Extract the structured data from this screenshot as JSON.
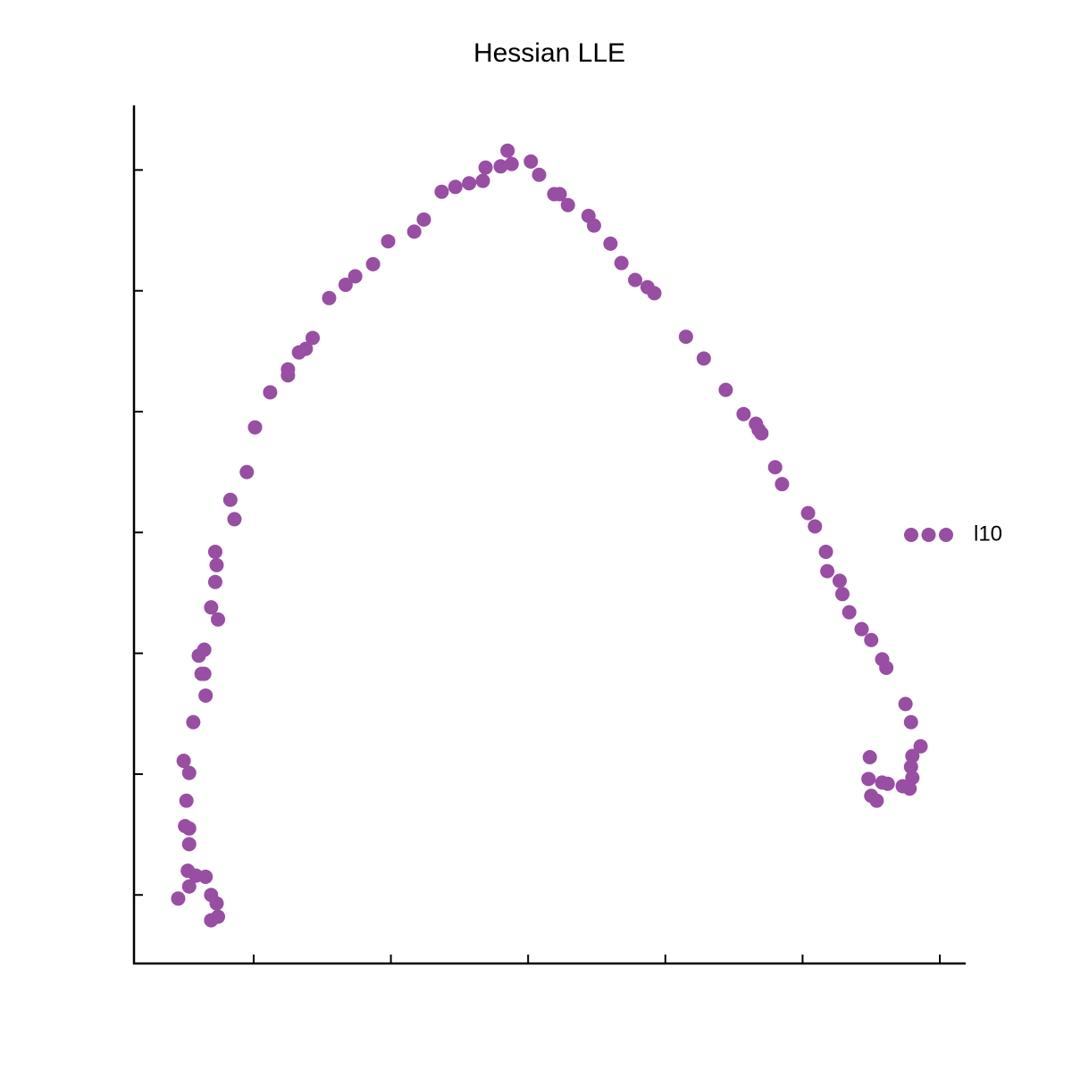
{
  "chart_data": {
    "type": "scatter",
    "title": "Hessian LLE",
    "xlim": [
      0.128,
      6.182
    ],
    "ylim": [
      -0.56,
      6.52
    ],
    "xticks": [
      1,
      2,
      3,
      4,
      5,
      6
    ],
    "yticks": [
      0,
      1,
      2,
      3,
      4,
      5,
      6
    ],
    "tick_labels": false,
    "legend": "right",
    "series": [
      {
        "name": "l10",
        "color": "#984ea3",
        "x": [
          0.45,
          0.69,
          0.74,
          0.73,
          0.69,
          0.53,
          0.52,
          0.58,
          0.65,
          0.53,
          0.53,
          0.5,
          0.51,
          0.53,
          0.49,
          0.56,
          0.65,
          0.64,
          0.62,
          0.6,
          0.64,
          0.74,
          0.69,
          0.72,
          0.73,
          0.72,
          0.86,
          0.83,
          0.95,
          1.01,
          1.12,
          1.25,
          1.25,
          1.33,
          1.38,
          1.43,
          1.55,
          1.67,
          1.74,
          1.87,
          1.98,
          2.17,
          2.24,
          2.37,
          2.47,
          2.57,
          2.67,
          2.69,
          2.8,
          2.85,
          2.88,
          3.02,
          3.08,
          3.19,
          3.23,
          3.29,
          3.44,
          3.48,
          3.6,
          3.68,
          3.78,
          3.87,
          3.92,
          4.15,
          4.28,
          4.44,
          4.57,
          4.66,
          4.68,
          4.7,
          4.8,
          4.85,
          5.04,
          5.09,
          5.17,
          5.18,
          5.27,
          5.29,
          5.34,
          5.43,
          5.5,
          5.58,
          5.61,
          5.75,
          5.79,
          5.86,
          5.8,
          5.79,
          5.8,
          5.78,
          5.73,
          5.62,
          5.58,
          5.49,
          5.48,
          5.5,
          5.54
        ],
        "values": [
          -0.03,
          -0.21,
          -0.18,
          -0.07,
          0.0,
          0.07,
          0.2,
          0.16,
          0.15,
          0.42,
          0.55,
          0.57,
          0.78,
          1.01,
          1.11,
          1.43,
          1.65,
          1.83,
          1.83,
          1.98,
          2.03,
          2.28,
          2.38,
          2.59,
          2.73,
          2.84,
          3.11,
          3.27,
          3.5,
          3.87,
          4.16,
          4.3,
          4.35,
          4.49,
          4.52,
          4.61,
          4.94,
          5.05,
          5.12,
          5.22,
          5.41,
          5.49,
          5.59,
          5.82,
          5.86,
          5.89,
          5.91,
          6.02,
          6.03,
          6.16,
          6.05,
          6.07,
          5.96,
          5.8,
          5.8,
          5.71,
          5.62,
          5.54,
          5.39,
          5.23,
          5.09,
          5.03,
          4.98,
          4.62,
          4.44,
          4.18,
          3.98,
          3.9,
          3.85,
          3.82,
          3.54,
          3.4,
          3.16,
          3.05,
          2.84,
          2.68,
          2.6,
          2.49,
          2.34,
          2.2,
          2.11,
          1.95,
          1.88,
          1.58,
          1.43,
          1.23,
          1.15,
          1.06,
          0.97,
          0.88,
          0.9,
          0.92,
          0.93,
          1.14,
          0.96,
          0.82,
          0.78
        ]
      }
    ]
  }
}
